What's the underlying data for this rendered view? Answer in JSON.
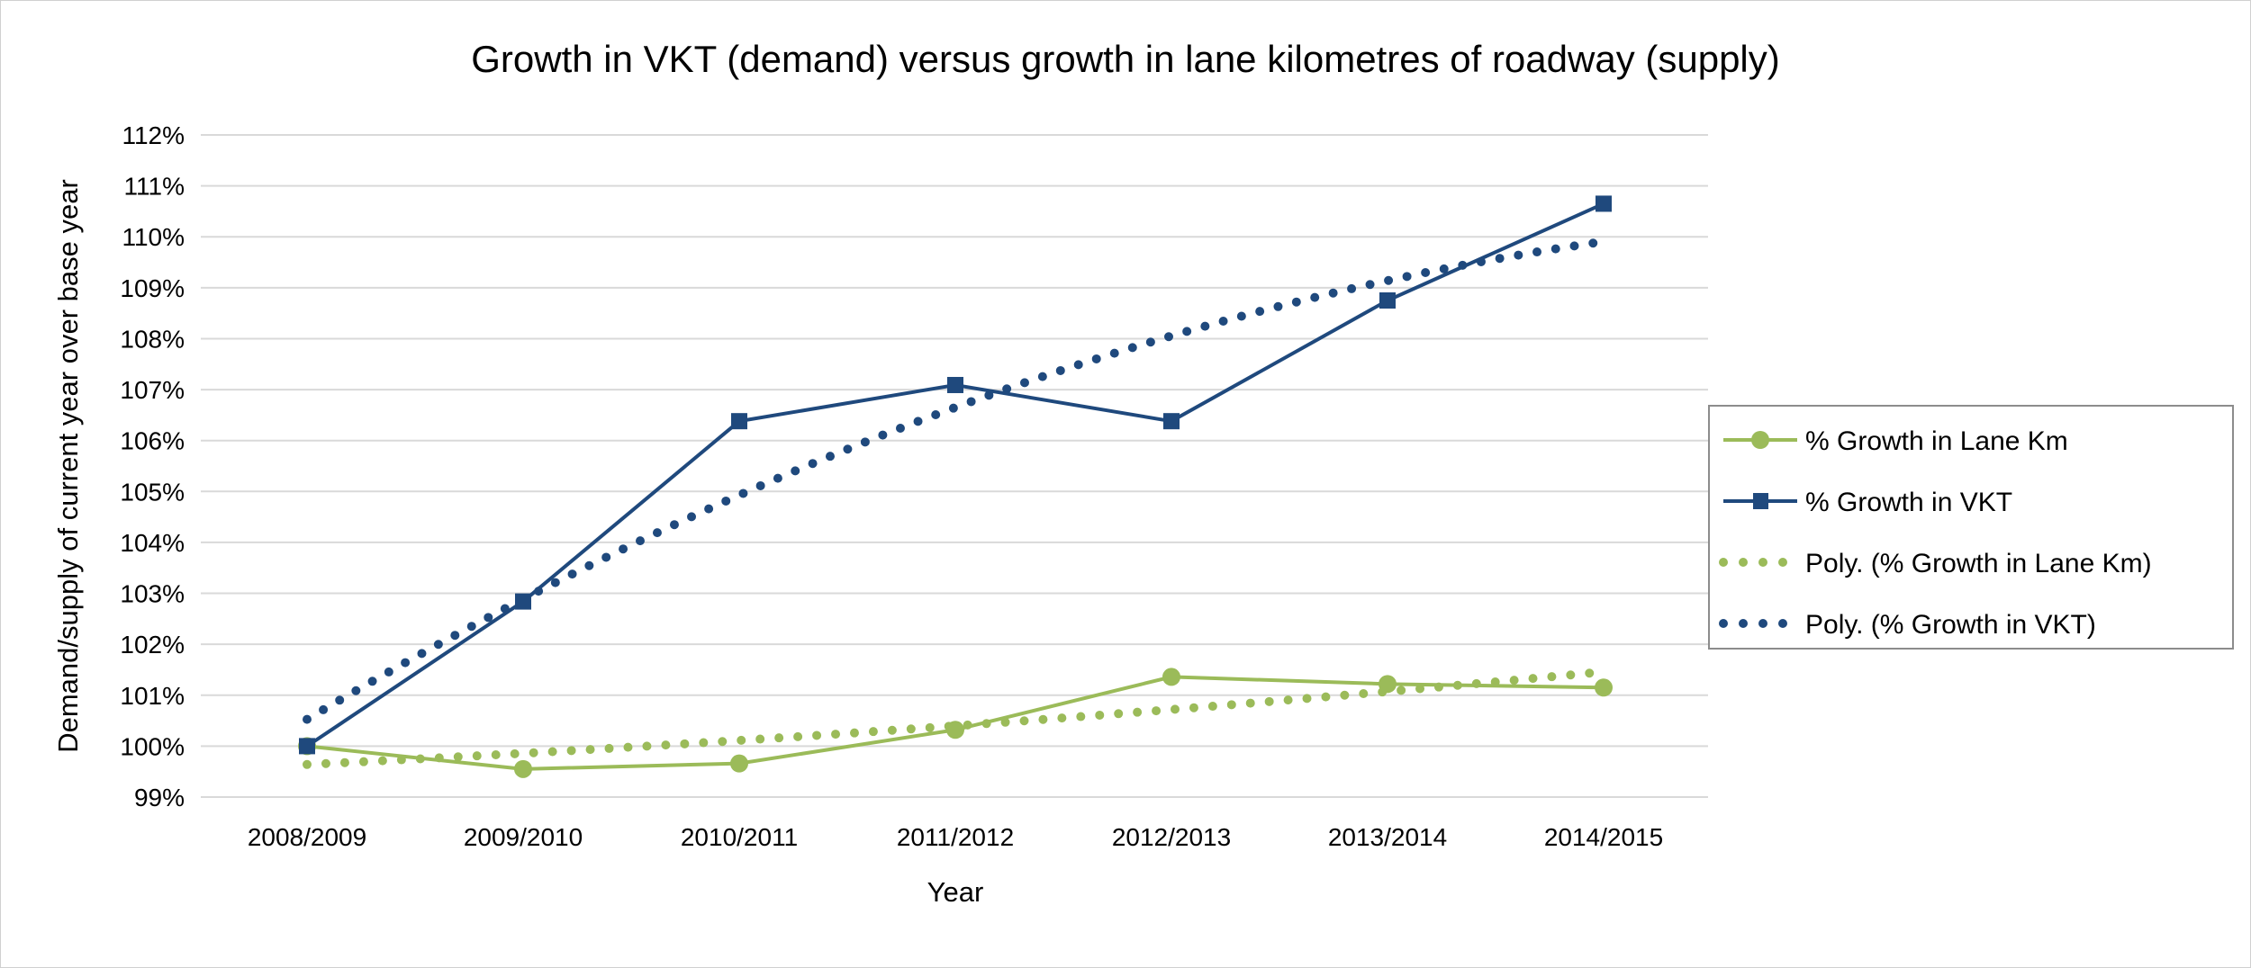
{
  "chart_data": {
    "type": "line",
    "title": "Growth in VKT (demand) versus growth in lane kilometres of roadway (supply)",
    "xlabel": "Year",
    "ylabel": "Demand/supply of current year over base year",
    "categories": [
      "2008/2009",
      "2009/2010",
      "2010/2011",
      "2011/2012",
      "2012/2013",
      "2013/2014",
      "2014/2015"
    ],
    "ylim": [
      99,
      112
    ],
    "yticks": [
      "99%",
      "100%",
      "101%",
      "102%",
      "103%",
      "104%",
      "105%",
      "106%",
      "107%",
      "108%",
      "109%",
      "110%",
      "111%",
      "112%"
    ],
    "grid": true,
    "legend_position": "right",
    "series": [
      {
        "name": "% Growth in Lane Km",
        "values": [
          100.0,
          99.55,
          99.66,
          100.32,
          101.36,
          101.22,
          101.15
        ],
        "color": "#9bbb59",
        "marker": "circle"
      },
      {
        "name": "% Growth in VKT",
        "values": [
          100.0,
          102.84,
          106.38,
          107.09,
          106.38,
          108.75,
          110.65
        ],
        "color": "#1f497d",
        "marker": "square"
      }
    ],
    "trendlines": [
      {
        "name": "Poly. (% Growth in Lane Km)",
        "of": 0,
        "type": "polynomial",
        "order": 2,
        "color": "#9bbb59"
      },
      {
        "name": "Poly. (% Growth in VKT)",
        "of": 1,
        "type": "polynomial",
        "order": 2,
        "color": "#1f497d"
      }
    ]
  }
}
